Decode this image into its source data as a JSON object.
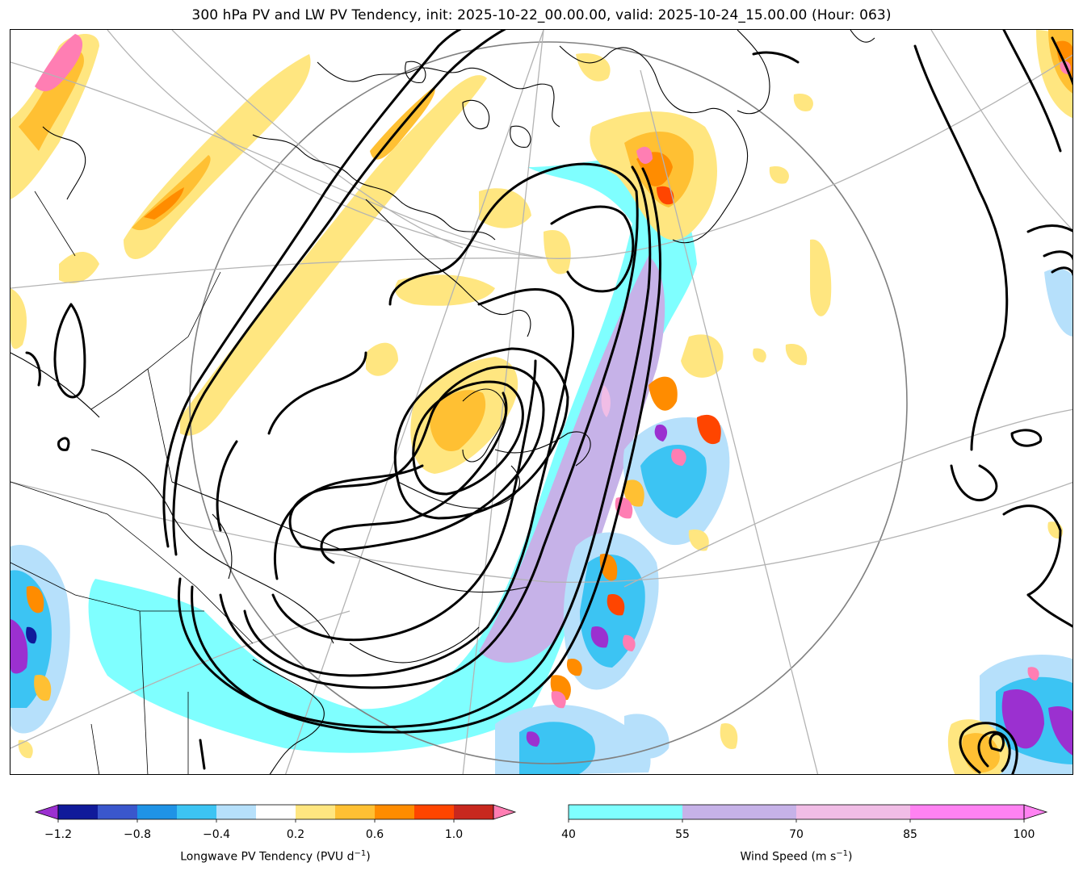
{
  "title": "300 hPa PV and LW PV Tendency, init: 2025-10-22_00.00.00, valid: 2025-10-24_15.00.00 (Hour: 063)",
  "pv_colorbar": {
    "label_prefix": "Longwave PV Tendency (PVU d",
    "label_exp": "−1",
    "label_suffix": ")",
    "ticks": [
      "−1.2",
      "−0.8",
      "−0.4",
      "0.2",
      "0.6",
      "1.0"
    ],
    "colors": [
      "#9b30d0",
      "#101a9a",
      "#3a57cc",
      "#1f93e6",
      "#3cc4f3",
      "#b6e0fb",
      "#ffffff",
      "#ffe680",
      "#ffc033",
      "#ff8c00",
      "#ff4500",
      "#c8281e",
      "#ff7eb3"
    ]
  },
  "wind_colorbar": {
    "label_prefix": "Wind Speed (m s",
    "label_exp": "−1",
    "label_suffix": ")",
    "ticks": [
      "40",
      "55",
      "70",
      "85",
      "100"
    ],
    "colors": [
      "#7fffff",
      "#c6b2e8",
      "#f1bde6",
      "#ff82f2"
    ]
  },
  "map": {
    "projection": "polar stereographic",
    "graticule_color": "#b3b3b3",
    "coastline_color": "#000000",
    "pv_contour_color": "#000000"
  }
}
